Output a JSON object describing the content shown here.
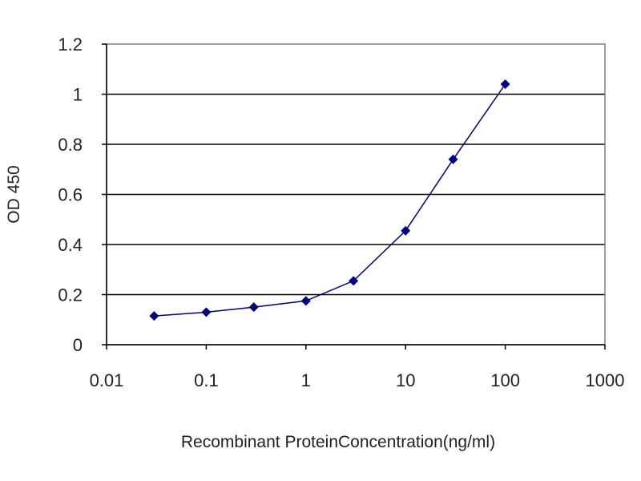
{
  "chart_data": {
    "type": "line",
    "title": "",
    "xlabel": "Recombinant ProteinConcentration(ng/ml)",
    "ylabel": "OD 450",
    "x_scale": "log",
    "xlim": [
      0.01,
      1000
    ],
    "ylim": [
      0,
      1.2
    ],
    "x_ticks": [
      0.01,
      0.1,
      1,
      10,
      100,
      1000
    ],
    "x_tick_labels": [
      "0.01",
      "0.1",
      "1",
      "10",
      "100",
      "1000"
    ],
    "y_ticks": [
      0,
      0.2,
      0.4,
      0.6,
      0.8,
      1,
      1.2
    ],
    "y_tick_labels": [
      "0",
      "0.2",
      "0.4",
      "0.6",
      "0.8",
      "1",
      "1.2"
    ],
    "grid": "horizontal",
    "legend": "none",
    "series": [
      {
        "color": "#00007f",
        "x": [
          0.03,
          0.1,
          0.3,
          1,
          3,
          10,
          30,
          100
        ],
        "y": [
          0.115,
          0.13,
          0.15,
          0.175,
          0.255,
          0.455,
          0.74,
          1.04
        ]
      }
    ],
    "colors": {
      "line": "#00007f",
      "marker": "#00007f",
      "gridline": "#000000",
      "plot_border": "#808080",
      "background": "#ffffff"
    }
  }
}
